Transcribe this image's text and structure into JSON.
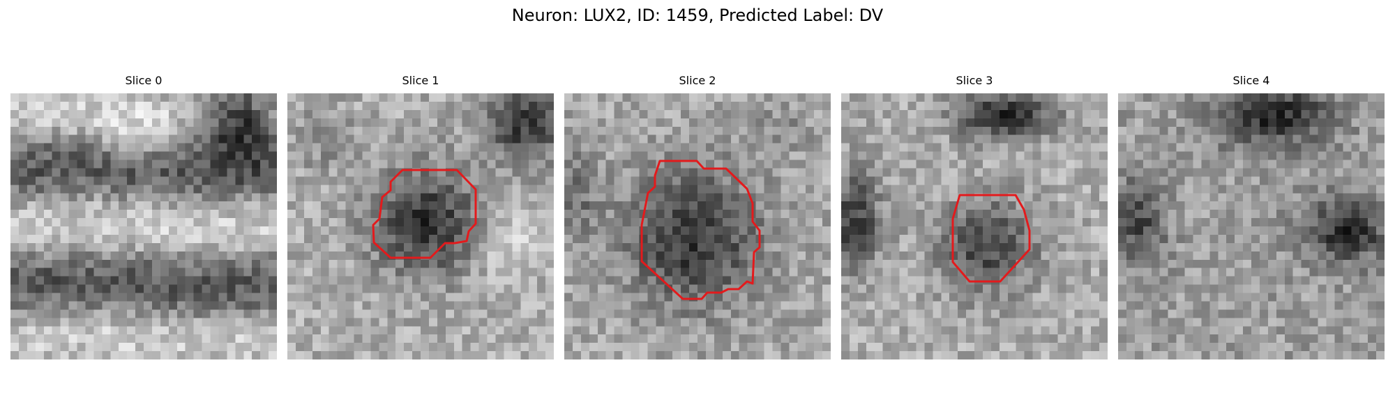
{
  "figure": {
    "title": "Neuron: LUX2, ID: 1459, Predicted Label: DV",
    "neuron": "LUX2",
    "id": 1459,
    "predicted_label": "DV",
    "colormap": "gray",
    "contour_color": "#e31a1c"
  },
  "slices": [
    {
      "title": "Slice 0",
      "has_contour": false
    },
    {
      "title": "Slice 1",
      "has_contour": true
    },
    {
      "title": "Slice 2",
      "has_contour": true
    },
    {
      "title": "Slice 3",
      "has_contour": true
    },
    {
      "title": "Slice 4",
      "has_contour": false
    }
  ]
}
